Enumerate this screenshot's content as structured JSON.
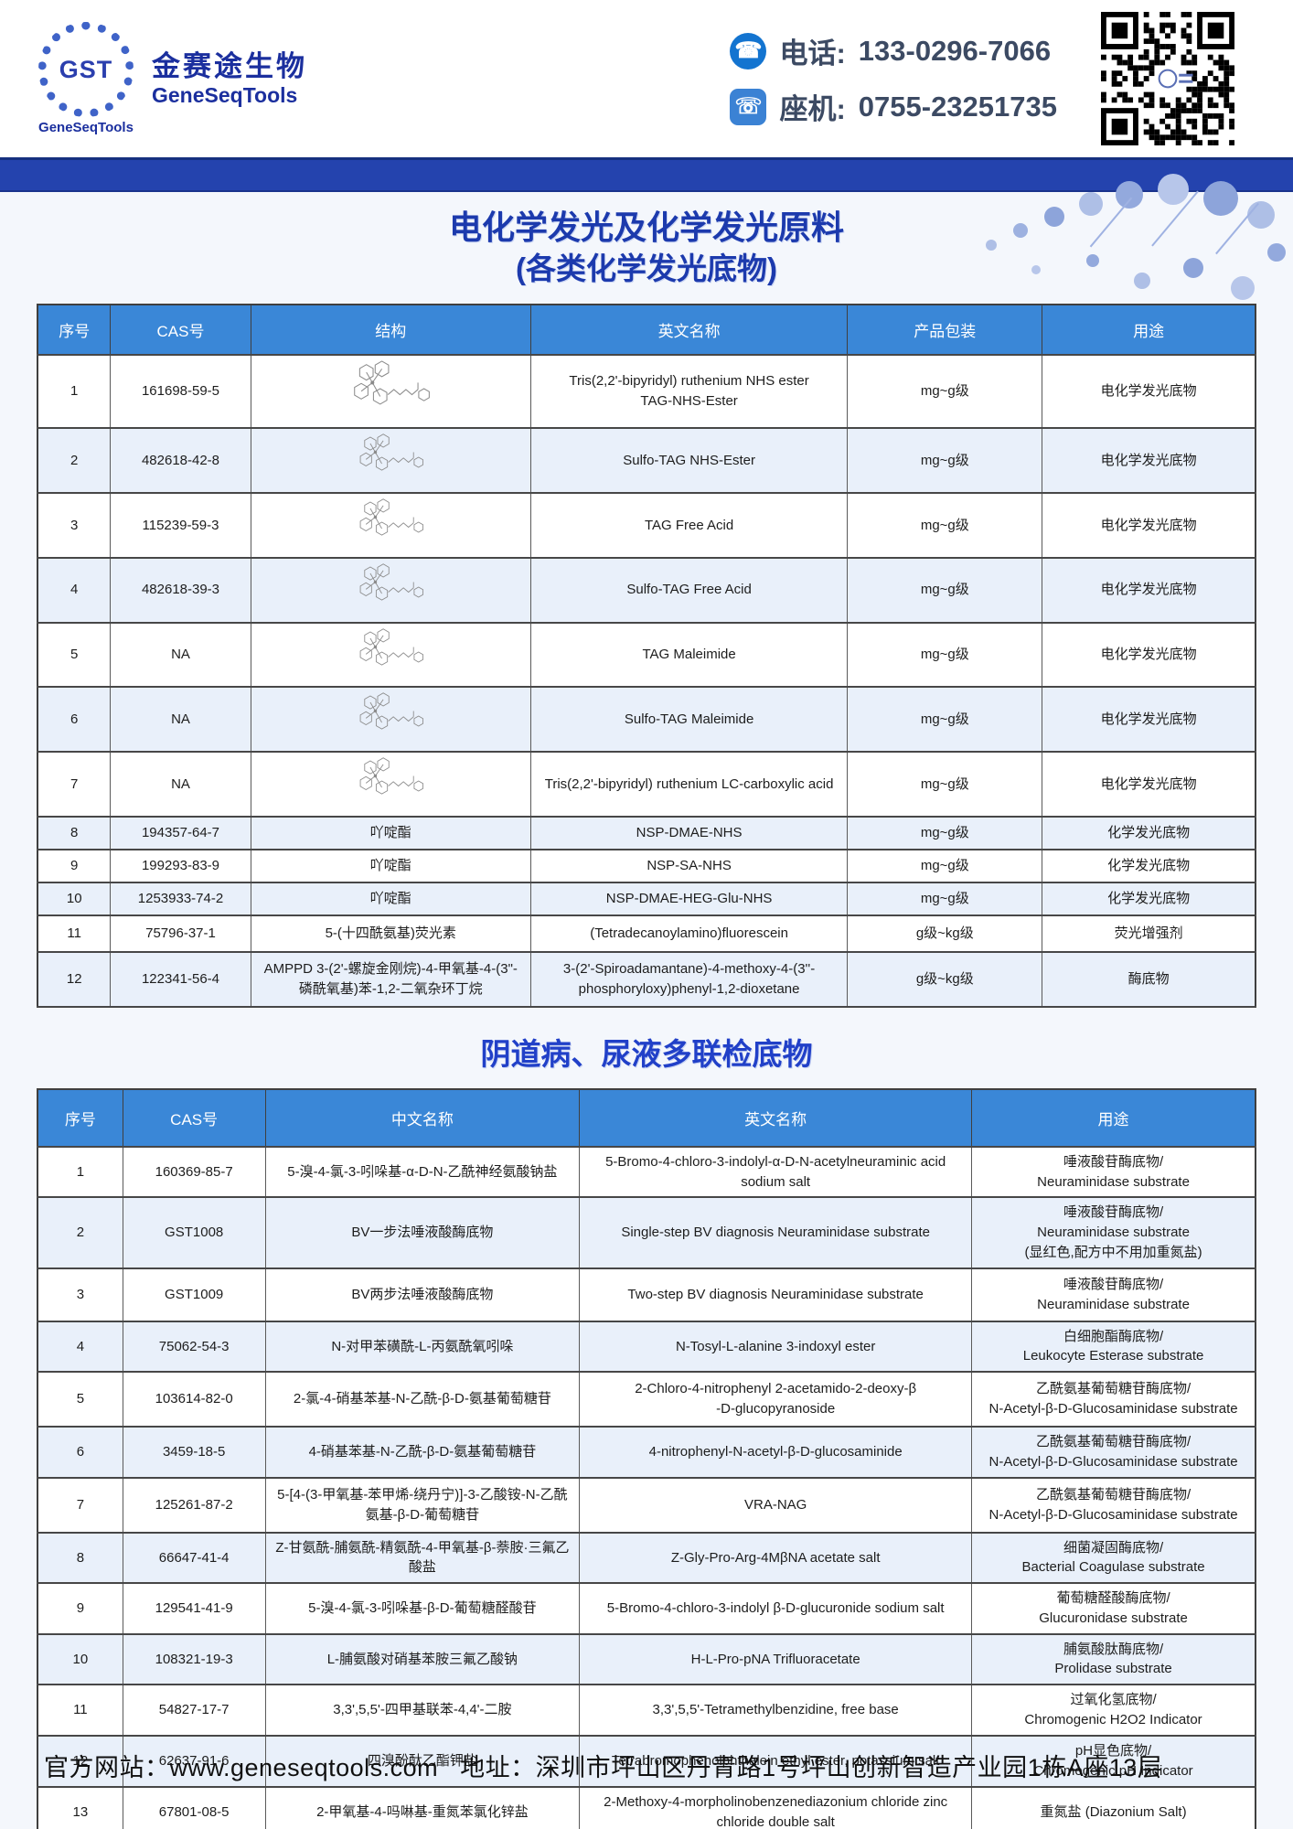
{
  "theme": {
    "accent_bar_blue": "#2443ae",
    "table_header_blue": "#3a87d7",
    "title_blue": "#1c3aad",
    "title2_blue": "#2140c8",
    "alt_row_blue": "#e9f0fa"
  },
  "header": {
    "logo": {
      "monogram": "GST",
      "caption": "GeneSeqTools",
      "company_cn": "金赛途生物",
      "company_en": "GeneSeqTools"
    },
    "contacts": [
      {
        "icon": "phone-icon",
        "label": "电话:",
        "number": "133-0296-7066"
      },
      {
        "icon": "landline-icon",
        "label": "座机:",
        "number": "0755-23251735"
      }
    ]
  },
  "section1": {
    "title_line1": "电化学发光及化学发光原料",
    "title_line2": "(各类化学发光底物)",
    "columns": [
      "序号",
      "CAS号",
      "结构",
      "英文名称",
      "产品包装",
      "用途"
    ],
    "rows": [
      {
        "no": "1",
        "cas": "161698-59-5",
        "structure": {
          "type": "drawing",
          "name": "ruthenium-complex-structure"
        },
        "en": "Tris(2,2'-bipyridyl) ruthenium NHS ester\nTAG-NHS-Ester",
        "pack": "mg~g级",
        "use": "电化学发光底物"
      },
      {
        "no": "2",
        "cas": "482618-42-8",
        "structure": {
          "type": "drawing",
          "name": "sulfo-tag-structure"
        },
        "en": "Sulfo-TAG NHS-Ester",
        "pack": "mg~g级",
        "use": "电化学发光底物"
      },
      {
        "no": "3",
        "cas": "115239-59-3",
        "structure": {
          "type": "drawing",
          "name": "tag-free-acid-structure"
        },
        "en": "TAG Free Acid",
        "pack": "mg~g级",
        "use": "电化学发光底物"
      },
      {
        "no": "4",
        "cas": "482618-39-3",
        "structure": {
          "type": "drawing",
          "name": "sulfo-tag-free-acid-structure"
        },
        "en": "Sulfo-TAG Free Acid",
        "pack": "mg~g级",
        "use": "电化学发光底物"
      },
      {
        "no": "5",
        "cas": "NA",
        "structure": {
          "type": "drawing",
          "name": "tag-maleimide-structure"
        },
        "en": "TAG Maleimide",
        "pack": "mg~g级",
        "use": "电化学发光底物"
      },
      {
        "no": "6",
        "cas": "NA",
        "structure": {
          "type": "drawing",
          "name": "sulfo-tag-maleimide-structure"
        },
        "en": "Sulfo-TAG Maleimide",
        "pack": "mg~g级",
        "use": "电化学发光底物"
      },
      {
        "no": "7",
        "cas": "NA",
        "structure": {
          "type": "drawing",
          "name": "ruthenium-lc-acid-structure"
        },
        "en": "Tris(2,2'-bipyridyl) ruthenium LC-carboxylic acid",
        "pack": "mg~g级",
        "use": "电化学发光底物"
      },
      {
        "no": "8",
        "cas": "194357-64-7",
        "structure": {
          "type": "text",
          "text": "吖啶酯"
        },
        "en": "NSP-DMAE-NHS",
        "pack": "mg~g级",
        "use": "化学发光底物"
      },
      {
        "no": "9",
        "cas": "199293-83-9",
        "structure": {
          "type": "text",
          "text": "吖啶酯"
        },
        "en": "NSP-SA-NHS",
        "pack": "mg~g级",
        "use": "化学发光底物"
      },
      {
        "no": "10",
        "cas": "1253933-74-2",
        "structure": {
          "type": "text",
          "text": "吖啶酯"
        },
        "en": "NSP-DMAE-HEG-Glu-NHS",
        "pack": "mg~g级",
        "use": "化学发光底物"
      },
      {
        "no": "11",
        "cas": "75796-37-1",
        "structure": {
          "type": "text",
          "text": "5-(十四酰氨基)荧光素"
        },
        "en": "(Tetradecanoylamino)fluorescein",
        "pack": "g级~kg级",
        "use": "荧光增强剂"
      },
      {
        "no": "12",
        "cas": "122341-56-4",
        "structure": {
          "type": "text",
          "text": "AMPPD 3-(2'-螺旋金刚烷)-4-甲氧基-4-(3\"-磷酰氧基)苯-1,2-二氧杂环丁烷"
        },
        "en": "3-(2'-Spiroadamantane)-4-methoxy-4-(3''-phosphoryloxy)phenyl-1,2-dioxetane",
        "pack": "g级~kg级",
        "use": "酶底物"
      }
    ]
  },
  "section2": {
    "title": "阴道病、尿液多联检底物",
    "columns": [
      "序号",
      "CAS号",
      "中文名称",
      "英文名称",
      "用途"
    ],
    "rows": [
      {
        "no": "1",
        "cas": "160369-85-7",
        "cn": "5-溴-4-氯-3-吲哚基-α-D-N-乙酰神经氨酸钠盐",
        "en": "5-Bromo-4-chloro-3-indolyl-α-D-N-acetylneuraminic acid sodium salt",
        "use": "唾液酸苷酶底物/\nNeuraminidase substrate"
      },
      {
        "no": "2",
        "cas": "GST1008",
        "cn": "BV一步法唾液酸酶底物",
        "en": "Single-step BV diagnosis Neuraminidase substrate",
        "use": "唾液酸苷酶底物/\nNeuraminidase substrate\n(显红色,配方中不用加重氮盐)"
      },
      {
        "no": "3",
        "cas": "GST1009",
        "cn": "BV两步法唾液酸酶底物",
        "en": "Two-step BV diagnosis Neuraminidase  substrate",
        "use": "唾液酸苷酶底物/\nNeuraminidase substrate"
      },
      {
        "no": "4",
        "cas": "75062-54-3",
        "cn": "N-对甲苯磺酰-L-丙氨酰氧吲哚",
        "en": "N-Tosyl-L-alanine 3-indoxyl ester",
        "use": "白细胞酯酶底物/\nLeukocyte Esterase substrate"
      },
      {
        "no": "5",
        "cas": "103614-82-0",
        "cn": "2-氯-4-硝基苯基-N-乙酰-β-D-氨基葡萄糖苷",
        "en": "2-Chloro-4-nitrophenyl 2-acetamido-2-deoxy-β\n-D-glucopyranoside",
        "use": "乙酰氨基葡萄糖苷酶底物/\nN-Acetyl-β-D-Glucosaminidase substrate"
      },
      {
        "no": "6",
        "cas": "3459-18-5",
        "cn": "4-硝基苯基-N-乙酰-β-D-氨基葡萄糖苷",
        "en": "4-nitrophenyl-N-acetyl-β-D-glucosaminide",
        "use": "乙酰氨基葡萄糖苷酶底物/\nN-Acetyl-β-D-Glucosaminidase substrate"
      },
      {
        "no": "7",
        "cas": "125261-87-2",
        "cn": "5-[4-(3-甲氧基-苯甲烯-绕丹宁)]-3-乙酸铵-N-乙酰氨基-β-D-葡萄糖苷",
        "en": "VRA-NAG",
        "use": "乙酰氨基葡萄糖苷酶底物/\nN-Acetyl-β-D-Glucosaminidase substrate"
      },
      {
        "no": "8",
        "cas": "66647-41-4",
        "cn": "Z-甘氨酰-脯氨酰-精氨酰-4-甲氧基-β-萘胺·三氟乙酸盐",
        "en": "Z-Gly-Pro-Arg-4MβNA acetate salt",
        "use": "细菌凝固酶底物/\nBacterial Coagulase substrate"
      },
      {
        "no": "9",
        "cas": "129541-41-9",
        "cn": "5-溴-4-氯-3-吲哚基-β-D-葡萄糖醛酸苷",
        "en": "5-Bromo-4-chloro-3-indolyl β-D-glucuronide sodium salt",
        "use": "葡萄糖醛酸酶底物/\nGlucuronidase substrate"
      },
      {
        "no": "10",
        "cas": "108321-19-3",
        "cn": "L-脯氨酸对硝基苯胺三氟乙酸钠",
        "en": "H-L-Pro-pNA Trifluoracetate",
        "use": "脯氨酸肽酶底物/\nProlidase substrate"
      },
      {
        "no": "11",
        "cas": "54827-17-7",
        "cn": "3,3',5,5'-四甲基联苯-4,4'-二胺",
        "en": "3,3',5,5'-Tetramethylbenzidine, free base",
        "use": "过氧化氢底物/\nChromogenic H2O2 Indicator"
      },
      {
        "no": "12",
        "cas": "62637-91-6",
        "cn": "四溴酚酞乙酯钾盐",
        "en": "Tetrabromophenolphthalein ethyl ester, potassium salt",
        "use": "pH显色底物/\nChromogenic pH Indicator"
      },
      {
        "no": "13",
        "cas": "67801-08-5",
        "cn": "2-甲氧基-4-吗啉基-重氮苯氯化锌盐",
        "en": "2-Methoxy-4-morpholinobenzenediazonium chloride zinc chloride double salt",
        "use": "重氮盐 (Diazonium Salt)"
      }
    ]
  },
  "footer": {
    "website_label": "官方网站：",
    "website": "www.geneseqtools.com",
    "address_label": "地址：",
    "address": "深圳市坪山区丹青路1号坪山创新智造产业园1栋A座13层"
  }
}
